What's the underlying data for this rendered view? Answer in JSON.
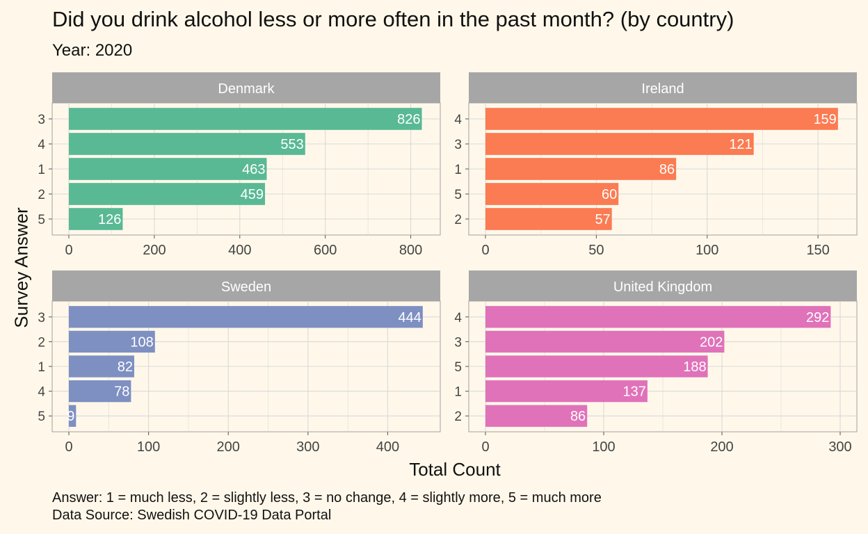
{
  "title": "Did you drink alcohol less or more often in the past month? (by country)",
  "subtitle": "Year: 2020",
  "ylabel": "Survey Answer",
  "xlabel": "Total Count",
  "caption_line1": "Answer: 1 = much less, 2 = slightly less, 3 = no change, 4 = slightly more, 5 = much more",
  "caption_line2": "Data Source: Swedish COVID-19 Data Portal",
  "colors": {
    "background": "#FFF8EA",
    "strip": "#A6A6A6",
    "grid": "#D9D9D9",
    "Denmark": "#59B995",
    "Ireland": "#FB7B52",
    "Sweden": "#7E8FC2",
    "United Kingdom": "#E072B9"
  },
  "chart_data": [
    {
      "type": "bar",
      "orientation": "horizontal",
      "panel": "Denmark",
      "categories": [
        "3",
        "4",
        "1",
        "2",
        "5"
      ],
      "values": [
        826,
        553,
        463,
        459,
        126
      ],
      "xlim": [
        0,
        830
      ],
      "xticks": [
        0,
        200,
        400,
        600,
        800
      ],
      "grid": true
    },
    {
      "type": "bar",
      "orientation": "horizontal",
      "panel": "Ireland",
      "categories": [
        "4",
        "3",
        "1",
        "5",
        "2"
      ],
      "values": [
        159,
        121,
        86,
        60,
        57
      ],
      "xlim": [
        0,
        160
      ],
      "xticks": [
        0,
        50,
        100,
        150
      ],
      "grid": true
    },
    {
      "type": "bar",
      "orientation": "horizontal",
      "panel": "Sweden",
      "categories": [
        "3",
        "2",
        "1",
        "4",
        "5"
      ],
      "values": [
        444,
        108,
        82,
        78,
        9
      ],
      "xlim": [
        0,
        445
      ],
      "xticks": [
        0,
        100,
        200,
        300,
        400
      ],
      "grid": true
    },
    {
      "type": "bar",
      "orientation": "horizontal",
      "panel": "United Kingdom",
      "categories": [
        "4",
        "3",
        "5",
        "1",
        "2"
      ],
      "values": [
        292,
        202,
        188,
        137,
        86
      ],
      "xlim": [
        0,
        300
      ],
      "xticks": [
        0,
        100,
        200,
        300
      ],
      "grid": true
    }
  ]
}
